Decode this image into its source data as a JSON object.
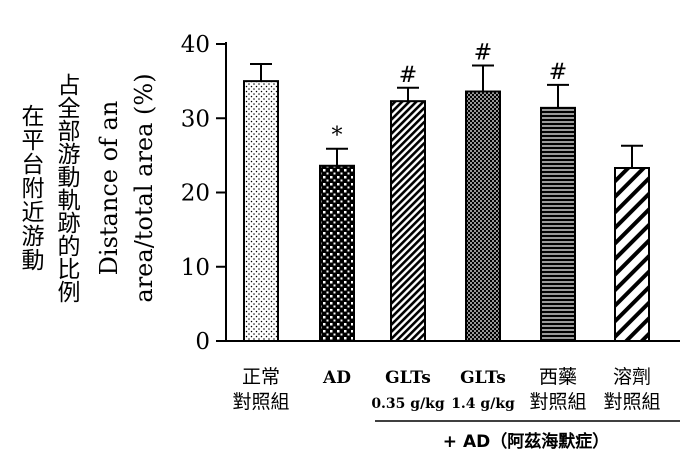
{
  "chart_data": {
    "type": "bar",
    "ylabel_zh_outer": "在平台附近游動",
    "ylabel_zh_inner": "占全部游動軌跡的比例",
    "ylabel_en_line1": "Distance of an",
    "ylabel_en_line2": "area/total area (%)",
    "ylim": [
      0,
      40
    ],
    "yticks": [
      "0",
      "10",
      "20",
      "30",
      "40"
    ],
    "categories": [
      {
        "line1": "正常",
        "line2": "對照組"
      },
      {
        "line1": "AD",
        "line2": ""
      },
      {
        "line1": "GLTs",
        "line2": "0.35 g/kg"
      },
      {
        "line1": "GLTs",
        "line2": "1.4 g/kg"
      },
      {
        "line1": "西藥",
        "line2": "對照組"
      },
      {
        "line1": "溶劑",
        "line2": "對照組"
      }
    ],
    "values": [
      35.0,
      23.6,
      32.3,
      33.6,
      31.4,
      23.3
    ],
    "errors": [
      2.3,
      2.3,
      1.8,
      3.5,
      3.1,
      3.0
    ],
    "significance": [
      "",
      "*",
      "#",
      "#",
      "#",
      ""
    ],
    "patterns": [
      "dots-light",
      "checker",
      "diag-dense",
      "dots-dense",
      "hlines",
      "diag-wide"
    ],
    "group_label": "+ AD（阿茲海默症）",
    "grid": false
  }
}
